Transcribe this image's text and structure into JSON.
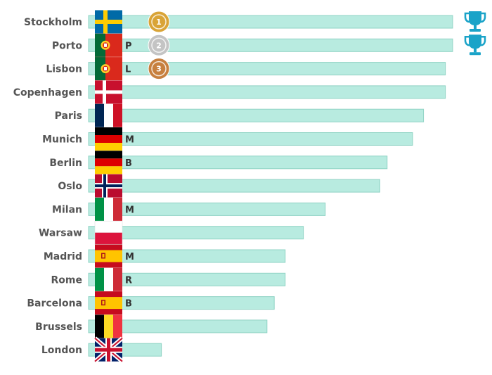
{
  "chart_data": {
    "type": "bar",
    "orientation": "horizontal",
    "title": "",
    "xlabel": "",
    "ylabel": "",
    "xlim": [
      0,
      100
    ],
    "bar_color": "#b8ebe0",
    "bar_border_color": "#8fd3c4",
    "categories": [
      "Stockholm",
      "Porto",
      "Lisbon",
      "Copenhagen",
      "Paris",
      "Munich",
      "Berlin",
      "Oslo",
      "Milan",
      "Warsaw",
      "Madrid",
      "Rome",
      "Barcelona",
      "Brussels",
      "London"
    ],
    "values": [
      100,
      100,
      98,
      98,
      92,
      89,
      82,
      80,
      65,
      59,
      54,
      54,
      51,
      49,
      20
    ],
    "flags": [
      "sweden",
      "portugal",
      "portugal",
      "denmark",
      "france",
      "germany",
      "germany",
      "norway",
      "italy",
      "poland",
      "spain",
      "italy",
      "spain",
      "belgium",
      "uk"
    ],
    "codes": [
      "",
      "P",
      "L",
      "",
      "",
      "M",
      "B",
      "",
      "M",
      "",
      "M",
      "R",
      "B",
      "",
      ""
    ],
    "medals": [
      {
        "rank": "1",
        "label": "gold-medal",
        "color": "#d9a437"
      },
      {
        "rank": "2",
        "label": "silver-medal",
        "color": "#c4c4c4"
      },
      {
        "rank": "3",
        "label": "bronze-medal",
        "color": "#c7803f"
      }
    ],
    "trophies": [
      {
        "icon": "trophy-icon"
      },
      {
        "icon": "trophy-icon"
      }
    ],
    "trophy_color": "#1aa3c8"
  }
}
